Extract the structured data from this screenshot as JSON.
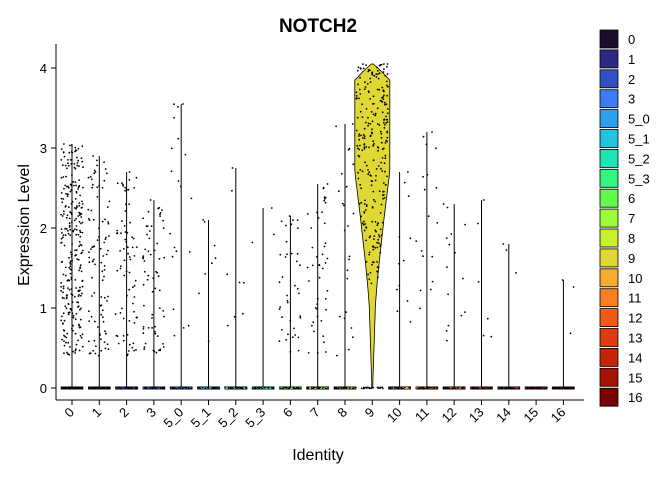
{
  "chart_data": {
    "type": "violin",
    "title": "NOTCH2",
    "xlabel": "Identity",
    "ylabel": "Expression Level",
    "ylim": [
      -0.15,
      4.3
    ],
    "yticks": [
      0,
      1,
      2,
      3,
      4
    ],
    "categories": [
      "0",
      "1",
      "2",
      "3",
      "5_0",
      "5_1",
      "5_2",
      "5_3",
      "6",
      "7",
      "8",
      "9",
      "10",
      "11",
      "12",
      "13",
      "14",
      "15",
      "16"
    ],
    "colors": [
      "#1b0f2e",
      "#2c2a85",
      "#3550c4",
      "#3b7cf5",
      "#2d9ef0",
      "#22c3dc",
      "#1de4b6",
      "#33f584",
      "#63fc4d",
      "#9ffc38",
      "#c8f02f",
      "#e0d835",
      "#f8ac2f",
      "#fb7f20",
      "#f05a17",
      "#dd3c10",
      "#c42508",
      "#a31404",
      "#7a0403"
    ],
    "max_expression": [
      3.05,
      2.9,
      2.7,
      2.35,
      3.55,
      2.1,
      2.75,
      2.25,
      2.15,
      2.55,
      3.3,
      4.05,
      2.7,
      3.2,
      2.3,
      2.35,
      1.8,
      0.02,
      1.35
    ],
    "n_expressing_cells": [
      280,
      95,
      75,
      65,
      20,
      8,
      8,
      3,
      40,
      45,
      25,
      260,
      12,
      18,
      15,
      6,
      3,
      0,
      3
    ],
    "legend": {
      "position": "right",
      "entries": [
        "0",
        "1",
        "2",
        "3",
        "5_0",
        "5_1",
        "5_2",
        "5_3",
        "6",
        "7",
        "8",
        "9",
        "10",
        "11",
        "12",
        "13",
        "14",
        "15",
        "16"
      ]
    },
    "grid": false
  }
}
